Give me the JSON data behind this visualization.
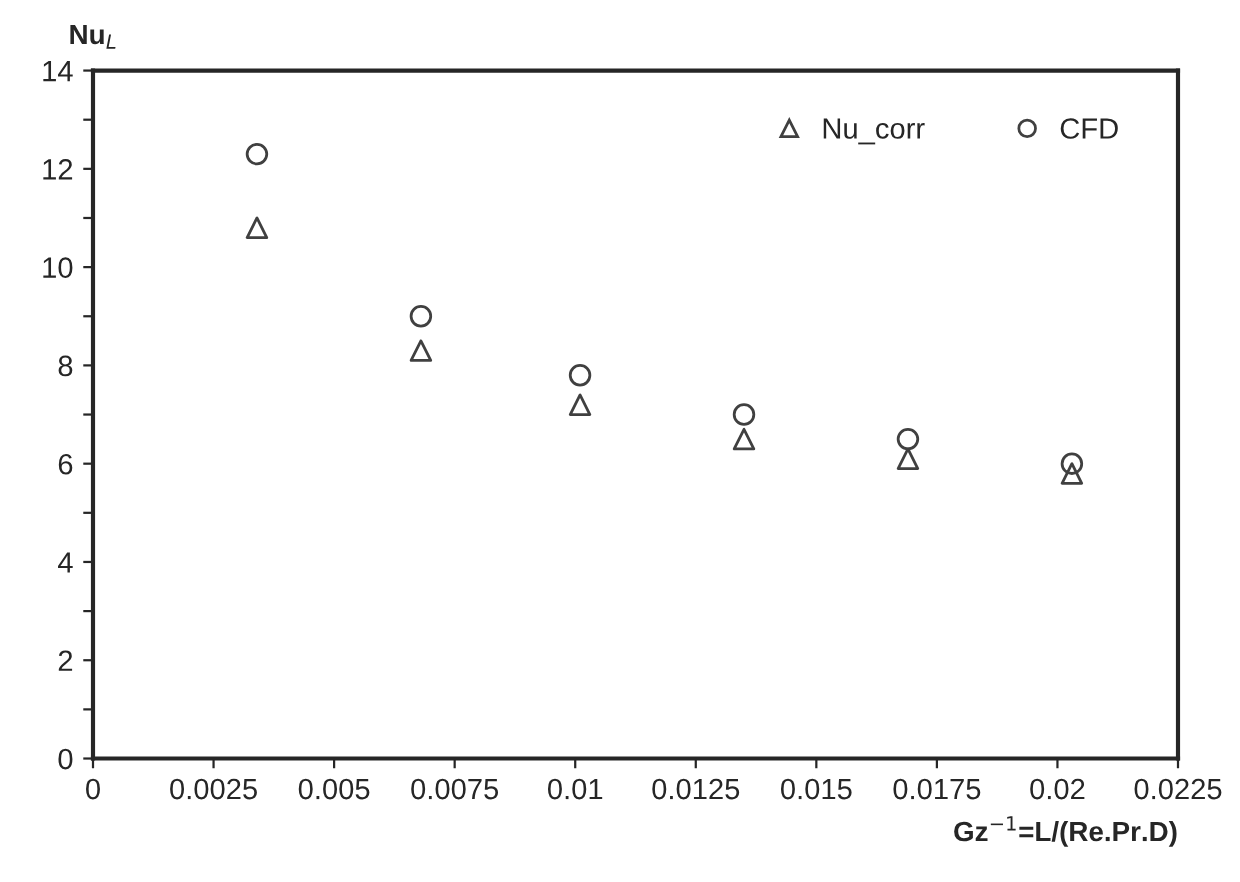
{
  "chart_data": {
    "type": "scatter",
    "xlabel": "Gz$^{−1}$=L/(Re.Pr.D)",
    "ylabel": "Nu$_{L}$",
    "x": [
      0.0034,
      0.0068,
      0.0101,
      0.0135,
      0.0169,
      0.0203
    ],
    "series": [
      {
        "name": "Nu_corr",
        "color": "#404040",
        "marker": "triangle",
        "values": [
          10.8,
          8.3,
          7.2,
          6.5,
          6.1,
          5.8
        ]
      },
      {
        "name": "CFD",
        "color": "#404040",
        "marker": "circle",
        "values": [
          12.3,
          9.0,
          7.8,
          7.0,
          6.5,
          6.0
        ]
      }
    ],
    "xlim": [
      0,
      0.0225
    ],
    "xticks": [
      0,
      0.0025,
      0.005,
      0.0075,
      0.01,
      0.0125,
      0.015,
      0.0175,
      0.02,
      0.0225
    ],
    "ylim": [
      0,
      14
    ],
    "yticks": [
      0,
      {
        "value": 1,
        "label": null
      },
      2,
      {
        "value": 3,
        "label": null
      },
      4,
      {
        "value": 5,
        "label": null
      },
      6,
      {
        "value": 7,
        "label": null
      },
      8,
      {
        "value": 9,
        "label": null
      },
      10,
      {
        "value": 11,
        "label": null
      },
      12,
      {
        "value": 13,
        "label": null
      },
      14
    ],
    "grid": false,
    "legend": "top right"
  }
}
